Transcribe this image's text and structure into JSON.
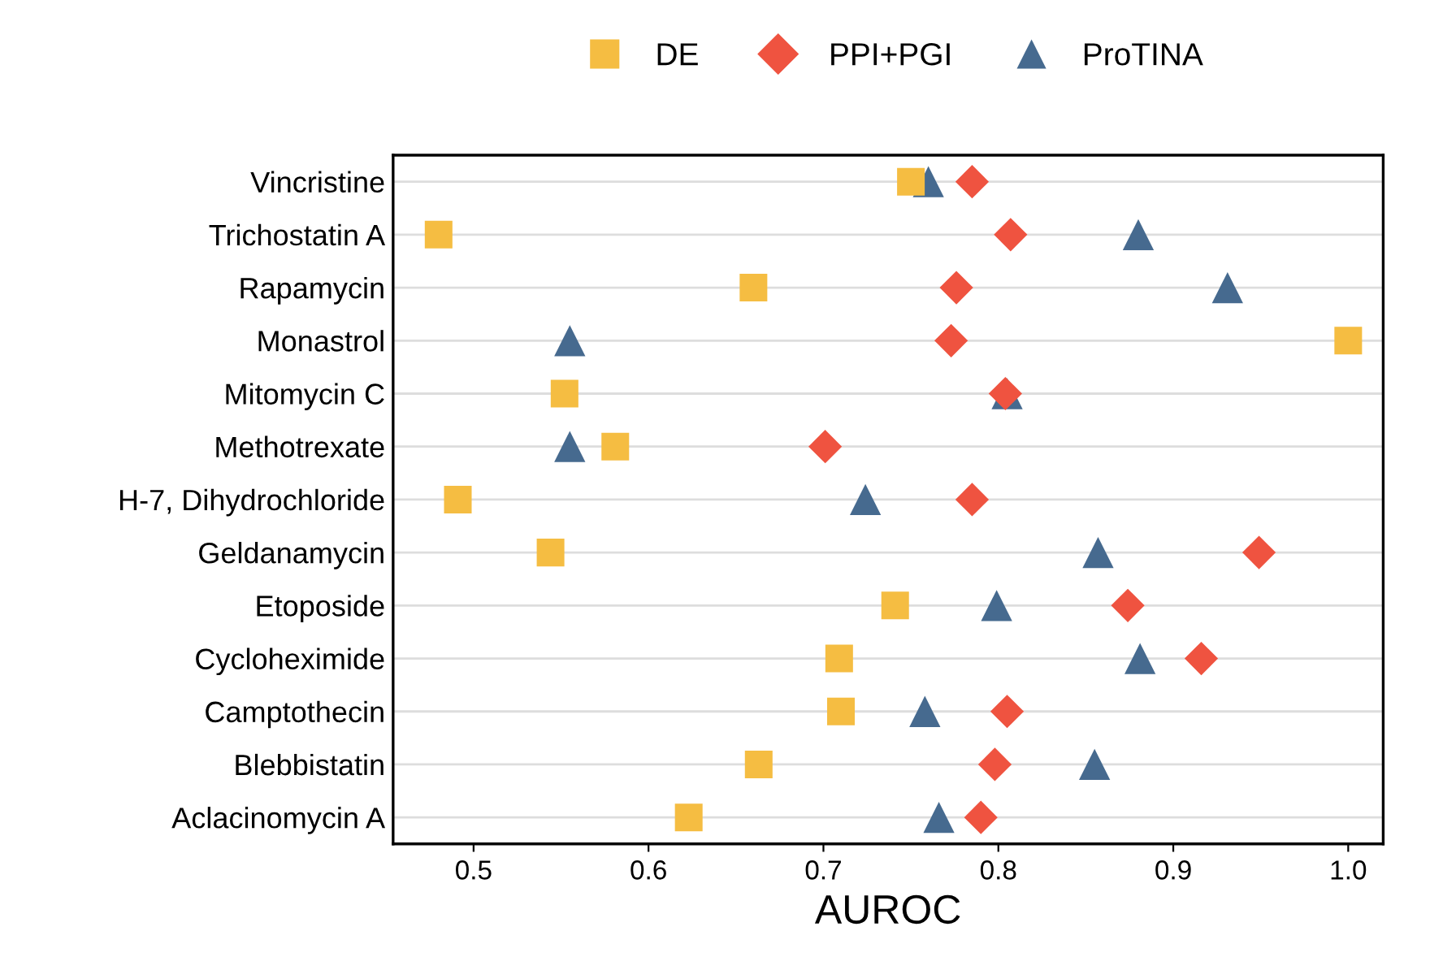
{
  "chart_data": {
    "type": "scatter",
    "xlabel": "AUROC",
    "categories": [
      "Vincristine",
      "Trichostatin A",
      "Rapamycin",
      "Monastrol",
      "Mitomycin C",
      "Methotrexate",
      "H-7, Dihydrochloride",
      "Geldanamycin",
      "Etoposide",
      "Cycloheximide",
      "Camptothecin",
      "Blebbistatin",
      "Aclacinomycin A"
    ],
    "orientation": "horizontal",
    "series": [
      {
        "name": "DE",
        "color": "#f5bd42",
        "marker": "square",
        "values": [
          0.75,
          0.48,
          0.66,
          1.0,
          0.552,
          0.581,
          0.491,
          0.544,
          0.741,
          0.709,
          0.71,
          0.663,
          0.623
        ]
      },
      {
        "name": "PPI+PGI",
        "color": "#ef5340",
        "marker": "diamond",
        "values": [
          0.785,
          0.807,
          0.776,
          0.773,
          0.804,
          0.701,
          0.785,
          0.949,
          0.874,
          0.916,
          0.805,
          0.798,
          0.79
        ]
      },
      {
        "name": "ProTINA",
        "color": "#466a8f",
        "marker": "triangle",
        "values": [
          0.76,
          0.88,
          0.931,
          0.555,
          0.805,
          0.555,
          0.724,
          0.857,
          0.799,
          0.881,
          0.758,
          0.855,
          0.766
        ]
      }
    ],
    "xlim": [
      0.454,
      1.02
    ],
    "xticks": [
      0.5,
      0.6,
      0.7,
      0.8,
      0.9,
      {
        "value": 1.0,
        "label": "1.0"
      }
    ],
    "grid": "y",
    "legend": "top"
  }
}
